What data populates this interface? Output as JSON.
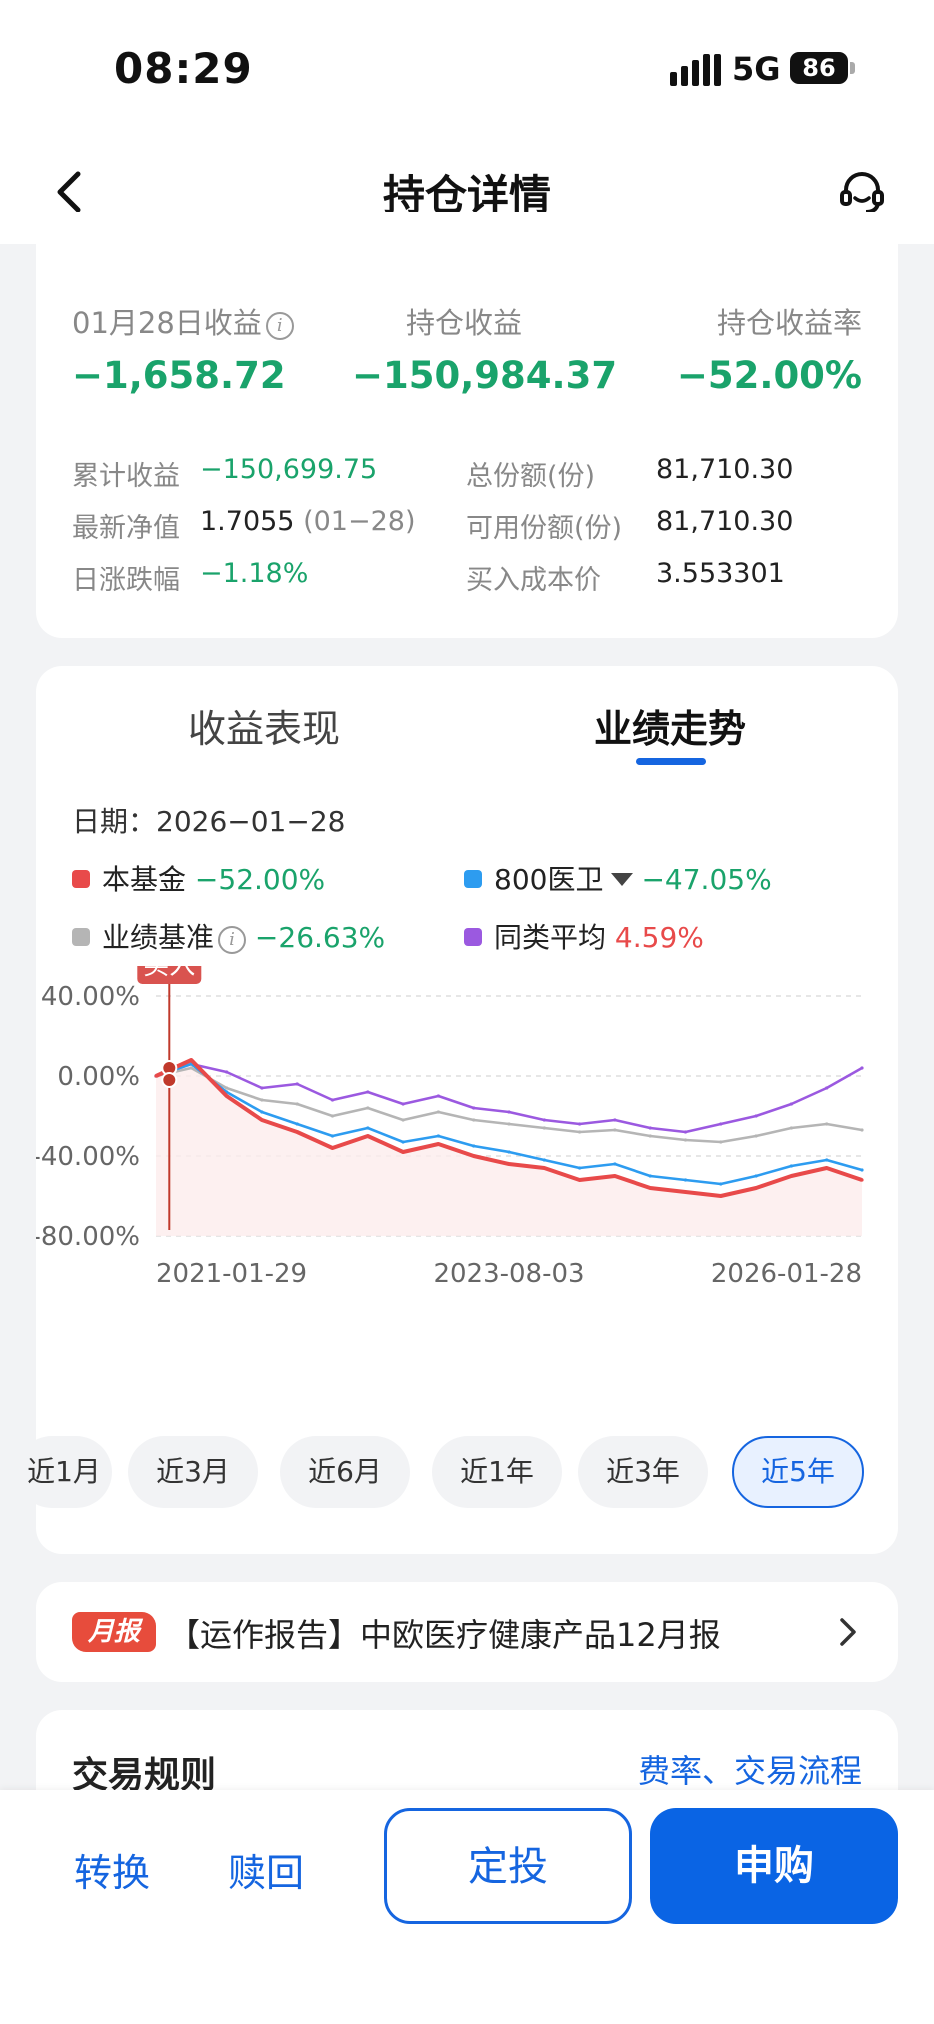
{
  "status": {
    "time": "08:29",
    "network": "5G",
    "battery": "86"
  },
  "nav": {
    "title": "持仓详情"
  },
  "summary": {
    "daily_label": "01月28日收益",
    "daily_value": "−1,658.72",
    "hold_label": "持仓收益",
    "hold_value": "−150,984.37",
    "rate_label": "持仓收益率",
    "rate_value": "−52.00%",
    "stats": [
      {
        "label": "累计收益",
        "value": "−150,699.75"
      },
      {
        "label": "最新净值",
        "value": "1.7055",
        "extra": "(01−28)"
      },
      {
        "label": "日涨跌幅",
        "value": "−1.18%"
      },
      {
        "label": "总份额(份)",
        "value": "81,710.30"
      },
      {
        "label": "可用份额(份)",
        "value": "81,710.30"
      },
      {
        "label": "买入成本价",
        "value": "3.553301"
      }
    ]
  },
  "performance": {
    "tabs": [
      "收益表现",
      "业绩走势"
    ],
    "active_tab": "业绩走势",
    "date_label": "日期：",
    "date_value": "2026−01−28",
    "legend": [
      {
        "name": "本基金",
        "value": "−52.00%",
        "color": "#e84a4a"
      },
      {
        "name": "800医卫",
        "value": "−47.05%",
        "color": "#2d9cf0"
      },
      {
        "name": "业绩基准",
        "value": "−26.63%",
        "color": "#b5b5b5"
      },
      {
        "name": "同类平均",
        "value": "4.59%",
        "color": "#9b59e0"
      }
    ],
    "buy_marker": "买入",
    "periods": [
      "近1月",
      "近3月",
      "近6月",
      "近1年",
      "近3年",
      "近5年"
    ],
    "active_period": "近5年"
  },
  "chart_data": {
    "type": "line",
    "x_ticks": [
      "2021-01-29",
      "2023-08-03",
      "2026-01-28"
    ],
    "y_ticks": [
      "40.00%",
      "0.00%",
      "-40.00%",
      "-80.00%"
    ],
    "ylim": [
      -80,
      40
    ],
    "x": [
      "2021-01",
      "2021-04",
      "2021-07",
      "2021-10",
      "2022-01",
      "2022-04",
      "2022-07",
      "2022-10",
      "2023-01",
      "2023-04",
      "2023-08",
      "2023-11",
      "2024-02",
      "2024-05",
      "2024-08",
      "2024-11",
      "2025-02",
      "2025-05",
      "2025-08",
      "2025-11",
      "2026-01"
    ],
    "series": [
      {
        "name": "本基金",
        "values": [
          0,
          8,
          -10,
          -22,
          -28,
          -36,
          -30,
          -38,
          -34,
          -40,
          -44,
          -46,
          -52,
          -50,
          -56,
          -58,
          -60,
          -56,
          -50,
          -46,
          -52
        ]
      },
      {
        "name": "800医卫",
        "values": [
          0,
          6,
          -8,
          -18,
          -24,
          -30,
          -26,
          -33,
          -30,
          -35,
          -38,
          -42,
          -46,
          -44,
          -50,
          -52,
          -54,
          -50,
          -45,
          -42,
          -47
        ]
      },
      {
        "name": "业绩基准",
        "values": [
          0,
          4,
          -6,
          -12,
          -14,
          -20,
          -16,
          -22,
          -18,
          -22,
          -24,
          -26,
          -28,
          -27,
          -30,
          -32,
          -33,
          -30,
          -26,
          -24,
          -27
        ]
      },
      {
        "name": "同类平均",
        "values": [
          0,
          6,
          2,
          -6,
          -4,
          -12,
          -8,
          -14,
          -10,
          -16,
          -18,
          -22,
          -24,
          -22,
          -26,
          -28,
          -24,
          -20,
          -14,
          -6,
          4
        ]
      }
    ]
  },
  "report": {
    "tag": "月报",
    "text": "【运作报告】中欧医疗健康产品12月报"
  },
  "rules": {
    "title": "交易规则",
    "link": "费率、交易流程"
  },
  "actions": {
    "convert": "转换",
    "redeem": "赎回",
    "sip": "定投",
    "buy": "申购"
  },
  "colors": {
    "gain_down": "#1aa36b",
    "gain_up": "#e84a4a",
    "accent": "#1565e0"
  }
}
